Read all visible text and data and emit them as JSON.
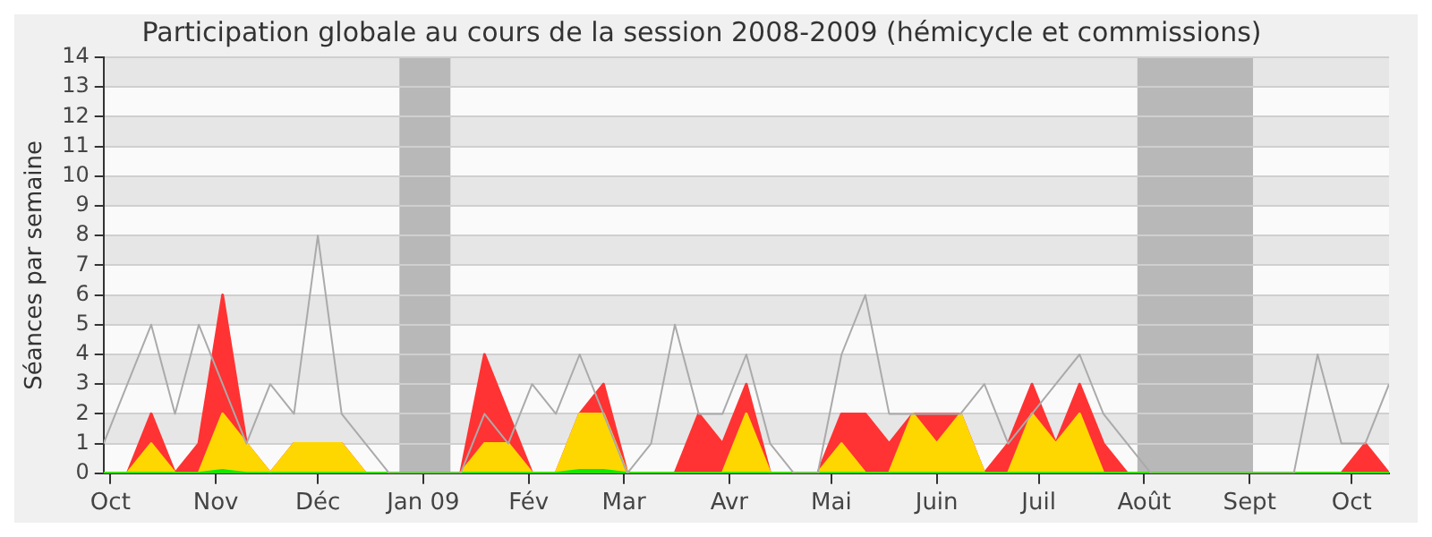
{
  "chart_data": {
    "type": "area",
    "title": "Participation globale au cours de la session 2008-2009 (hémicycle et commissions)",
    "ylabel": "Séances par semaine",
    "x": [
      "2008-09-29",
      "2008-10-06",
      "2008-10-13",
      "2008-10-20",
      "2008-10-27",
      "2008-11-03",
      "2008-11-10",
      "2008-11-17",
      "2008-11-24",
      "2008-12-01",
      "2008-12-08",
      "2008-12-15",
      "2008-12-22",
      "2008-12-29",
      "2009-01-05",
      "2009-01-12",
      "2009-01-19",
      "2009-01-26",
      "2009-02-02",
      "2009-02-09",
      "2009-02-16",
      "2009-02-23",
      "2009-03-02",
      "2009-03-09",
      "2009-03-16",
      "2009-03-23",
      "2009-03-30",
      "2009-04-06",
      "2009-04-13",
      "2009-04-20",
      "2009-04-27",
      "2009-05-04",
      "2009-05-11",
      "2009-05-18",
      "2009-05-25",
      "2009-06-01",
      "2009-06-08",
      "2009-06-15",
      "2009-06-22",
      "2009-06-29",
      "2009-07-06",
      "2009-07-13",
      "2009-07-20",
      "2009-07-27",
      "2009-08-03",
      "2009-08-10",
      "2009-08-17",
      "2009-08-24",
      "2009-08-31",
      "2009-09-07",
      "2009-09-14",
      "2009-09-21",
      "2009-09-28",
      "2009-10-05",
      "2009-10-12"
    ],
    "series": [
      {
        "color": "#ff3333",
        "values": [
          0,
          0,
          2,
          0,
          1,
          6,
          1,
          0,
          1,
          1,
          1,
          0,
          0,
          0,
          0,
          0,
          4,
          2,
          0,
          0,
          2,
          3,
          0,
          0,
          0,
          2,
          1,
          3,
          0,
          0,
          0,
          2,
          2,
          1,
          2,
          2,
          2,
          0,
          1,
          3,
          1,
          3,
          1,
          0,
          0,
          0,
          0,
          0,
          0,
          0,
          0,
          0,
          0,
          1,
          0
        ]
      },
      {
        "color": "#ffd700",
        "values": [
          0,
          0,
          1,
          0,
          0,
          2,
          1,
          0,
          1,
          1,
          1,
          0,
          0,
          0,
          0,
          0,
          1,
          1,
          0,
          0,
          2,
          2,
          0,
          0,
          0,
          0,
          0,
          2,
          0,
          0,
          0,
          1,
          0,
          0,
          2,
          1,
          2,
          0,
          0,
          2,
          1,
          2,
          0,
          0,
          0,
          0,
          0,
          0,
          0,
          0,
          0,
          0,
          0,
          0,
          0
        ]
      },
      {
        "color": "#00ee00",
        "values": [
          0,
          0,
          0,
          0,
          0,
          0.1,
          0,
          0,
          0,
          0,
          0,
          0,
          0,
          0,
          0,
          0,
          0,
          0,
          0,
          0,
          0.1,
          0.1,
          0,
          0,
          0,
          0,
          0,
          0,
          0,
          0,
          0,
          0,
          0,
          0,
          0,
          0,
          0,
          0,
          0,
          0,
          0,
          0,
          0,
          0,
          0,
          0,
          0,
          0,
          0,
          0,
          0,
          0,
          0,
          0,
          0
        ]
      },
      {
        "type": "line",
        "color": "#aaaaaa",
        "values": [
          1,
          3,
          5,
          2,
          5,
          3,
          1,
          3,
          2,
          8,
          2,
          1,
          0,
          0,
          0,
          0,
          2,
          1,
          3,
          2,
          4,
          2,
          0,
          1,
          5,
          2,
          2,
          4,
          1,
          0,
          0,
          4,
          6,
          2,
          2,
          2,
          2,
          3,
          1,
          2,
          3,
          4,
          2,
          1,
          0,
          0,
          0,
          0,
          0,
          0,
          0,
          4,
          1,
          1,
          3
        ]
      }
    ],
    "xlim": [
      "2008-09-29",
      "2009-10-12"
    ],
    "xticks": [
      {
        "value": "2008-10-01",
        "label": "Oct"
      },
      {
        "value": "2008-11-01",
        "label": "Nov"
      },
      {
        "value": "2008-12-01",
        "label": "Déc"
      },
      {
        "value": "2009-01-01",
        "label": "Jan 09"
      },
      {
        "value": "2009-02-01",
        "label": "Fév"
      },
      {
        "value": "2009-03-01",
        "label": "Mar"
      },
      {
        "value": "2009-04-01",
        "label": "Avr"
      },
      {
        "value": "2009-05-01",
        "label": "Mai"
      },
      {
        "value": "2009-06-01",
        "label": "Juin"
      },
      {
        "value": "2009-07-01",
        "label": "Juil"
      },
      {
        "value": "2009-08-01",
        "label": "Août"
      },
      {
        "value": "2009-09-01",
        "label": "Sept"
      },
      {
        "value": "2009-10-01",
        "label": "Oct"
      }
    ],
    "ylim": [
      0,
      14
    ],
    "yticks": [
      0,
      1,
      2,
      3,
      4,
      5,
      6,
      7,
      8,
      9,
      10,
      11,
      12,
      13,
      14
    ],
    "bands": [
      {
        "axis": "x",
        "from": "2008-12-25",
        "to": "2009-01-09",
        "color": "#b8b8b8"
      },
      {
        "axis": "x",
        "from": "2009-07-30",
        "to": "2009-09-02",
        "color": "#b8b8b8"
      }
    ],
    "grid": "y",
    "legend": false
  }
}
